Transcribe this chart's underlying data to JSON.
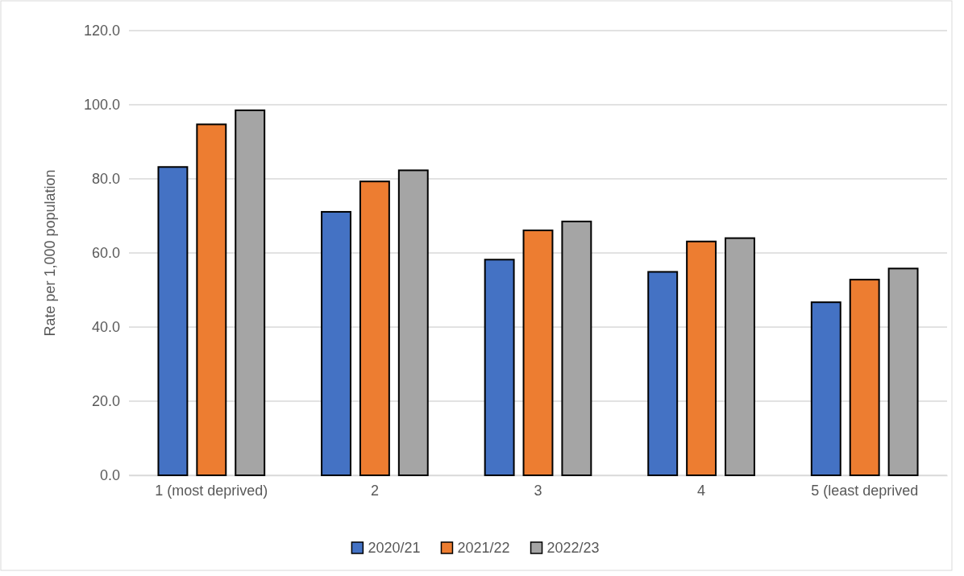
{
  "chart_data": {
    "type": "bar",
    "ylabel": "Rate per 1,000 population",
    "categories": [
      "1 (most deprived)",
      "2",
      "3",
      "4",
      "5 (least deprived"
    ],
    "series": [
      {
        "name": "2020/21",
        "color": "#4472c4",
        "values": [
          83.2,
          71.1,
          58.2,
          54.9,
          46.7
        ]
      },
      {
        "name": "2021/22",
        "color": "#ed7d31",
        "values": [
          94.7,
          79.3,
          66.1,
          63.1,
          52.8
        ]
      },
      {
        "name": "2022/23",
        "color": "#a5a5a5",
        "values": [
          98.5,
          82.3,
          68.5,
          64.0,
          55.8
        ]
      }
    ],
    "ylim": [
      0,
      120
    ],
    "yticks": [
      {
        "value": 0,
        "label": "0.0"
      },
      {
        "value": 20,
        "label": "20.0"
      },
      {
        "value": 40,
        "label": "40.0"
      },
      {
        "value": 60,
        "label": "60.0"
      },
      {
        "value": 80,
        "label": "80.0"
      },
      {
        "value": 100,
        "label": "100.0"
      },
      {
        "value": 120,
        "label": "120.0"
      }
    ],
    "grid": "y",
    "legend": "bottom"
  }
}
